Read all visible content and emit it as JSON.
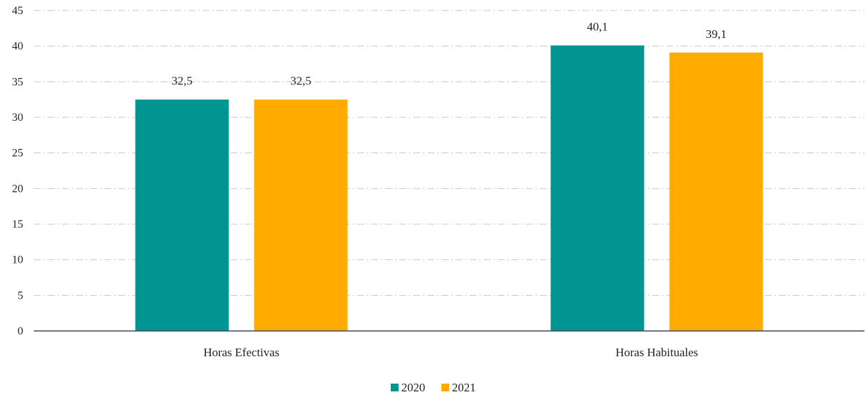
{
  "chart_data": {
    "type": "bar",
    "categories": [
      "Horas Efectivas",
      "Horas Habituales"
    ],
    "series": [
      {
        "name": "2020",
        "values": [
          32.5,
          40.1
        ],
        "labels": [
          "32,5",
          "40,1"
        ],
        "color": "#009590"
      },
      {
        "name": "2021",
        "values": [
          32.5,
          39.1
        ],
        "labels": [
          "32,5",
          "39,1"
        ],
        "color": "#FFAB00"
      }
    ],
    "ylim": [
      0,
      45
    ],
    "yticks": [
      0,
      5,
      10,
      15,
      20,
      25,
      30,
      35,
      40,
      45
    ],
    "grid": true,
    "legend_position": "bottom-center",
    "axis_color": "#3E4A63",
    "grid_color": "#C8C8C8"
  }
}
